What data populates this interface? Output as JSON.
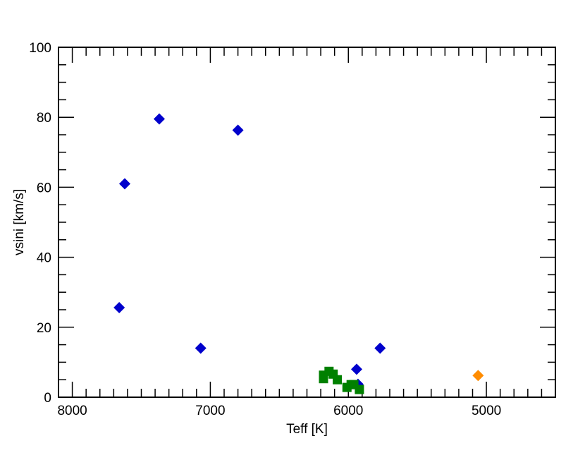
{
  "chart_data": {
    "type": "scatter",
    "title": "",
    "xlabel": "Teff [K]",
    "ylabel": "vsini [km/s]",
    "xlim": [
      8100,
      4500
    ],
    "ylim": [
      0,
      100
    ],
    "x_reversed": true,
    "grid": false,
    "legend": "none",
    "x_ticks": [
      8000,
      7000,
      6000,
      5000
    ],
    "x_tick_labels": [
      "8000",
      "7000",
      "6000",
      "5000"
    ],
    "y_ticks": [
      0,
      20,
      40,
      60,
      80,
      100
    ],
    "y_tick_labels": [
      "0",
      "20",
      "40",
      "60",
      "80",
      "100"
    ],
    "series": [
      {
        "marker": "diamond",
        "color": "#0000cc",
        "points": [
          {
            "x": 7370,
            "y": 79.5
          },
          {
            "x": 6800,
            "y": 76.3
          },
          {
            "x": 7620,
            "y": 61.0
          },
          {
            "x": 7660,
            "y": 25.6
          },
          {
            "x": 7070,
            "y": 14.0
          },
          {
            "x": 5770,
            "y": 14.0
          },
          {
            "x": 5940,
            "y": 8.0
          },
          {
            "x": 5930,
            "y": 3.7
          }
        ]
      },
      {
        "marker": "square",
        "color": "#008000",
        "points": [
          {
            "x": 6180,
            "y": 5.3
          },
          {
            "x": 6180,
            "y": 6.3
          },
          {
            "x": 6140,
            "y": 7.4
          },
          {
            "x": 6110,
            "y": 6.6
          },
          {
            "x": 6080,
            "y": 5.0
          },
          {
            "x": 6010,
            "y": 2.8
          },
          {
            "x": 5980,
            "y": 3.6
          },
          {
            "x": 5960,
            "y": 3.6
          },
          {
            "x": 5920,
            "y": 2.2
          }
        ]
      },
      {
        "marker": "diamond",
        "color": "#ff8c00",
        "points": [
          {
            "x": 5060,
            "y": 6.2
          }
        ]
      }
    ]
  }
}
